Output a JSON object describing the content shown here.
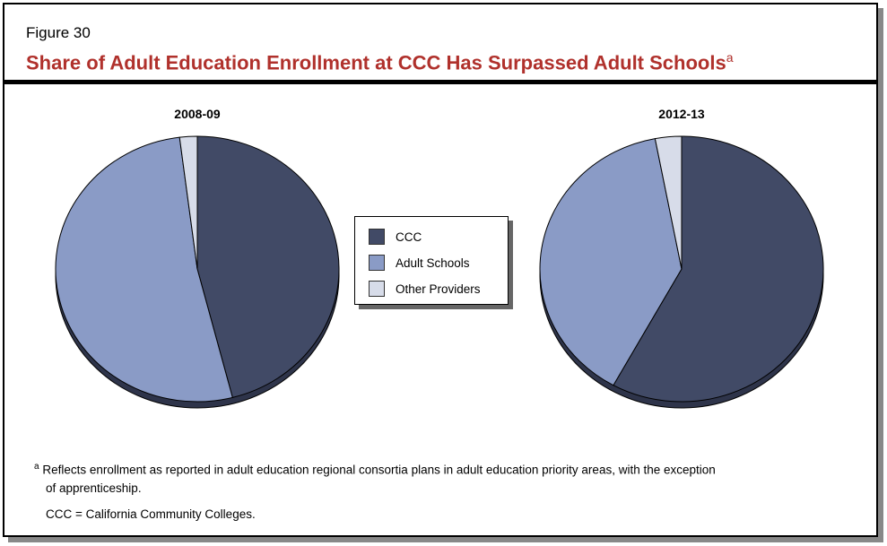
{
  "figure_label": "Figure 30",
  "title": "Share of Adult Education Enrollment at CCC Has Surpassed Adult Schools",
  "title_footnote_marker": "a",
  "chart_data": [
    {
      "type": "pie",
      "title": "2008-09",
      "categories": [
        "CCC",
        "Adult Schools",
        "Other Providers"
      ],
      "values": [
        46,
        52,
        2
      ],
      "colors": [
        "#414a66",
        "#8a9bc6",
        "#d7dce9"
      ]
    },
    {
      "type": "pie",
      "title": "2012-13",
      "categories": [
        "CCC",
        "Adult Schools",
        "Other Providers"
      ],
      "values": [
        58,
        39,
        3
      ],
      "colors": [
        "#414a66",
        "#8a9bc6",
        "#d7dce9"
      ]
    }
  ],
  "legend": {
    "placement": "center",
    "items": [
      {
        "label": "CCC",
        "color": "#414a66"
      },
      {
        "label": "Adult Schools",
        "color": "#8a9bc6"
      },
      {
        "label": "Other Providers",
        "color": "#d7dce9"
      }
    ]
  },
  "footnotes": {
    "marker": "a",
    "note_line1": "Reflects enrollment as reported in adult education regional consortia plans in adult education priority areas, with the exception",
    "note_line2": "of apprenticeship.",
    "abbreviation": "CCC = California Community Colleges."
  }
}
